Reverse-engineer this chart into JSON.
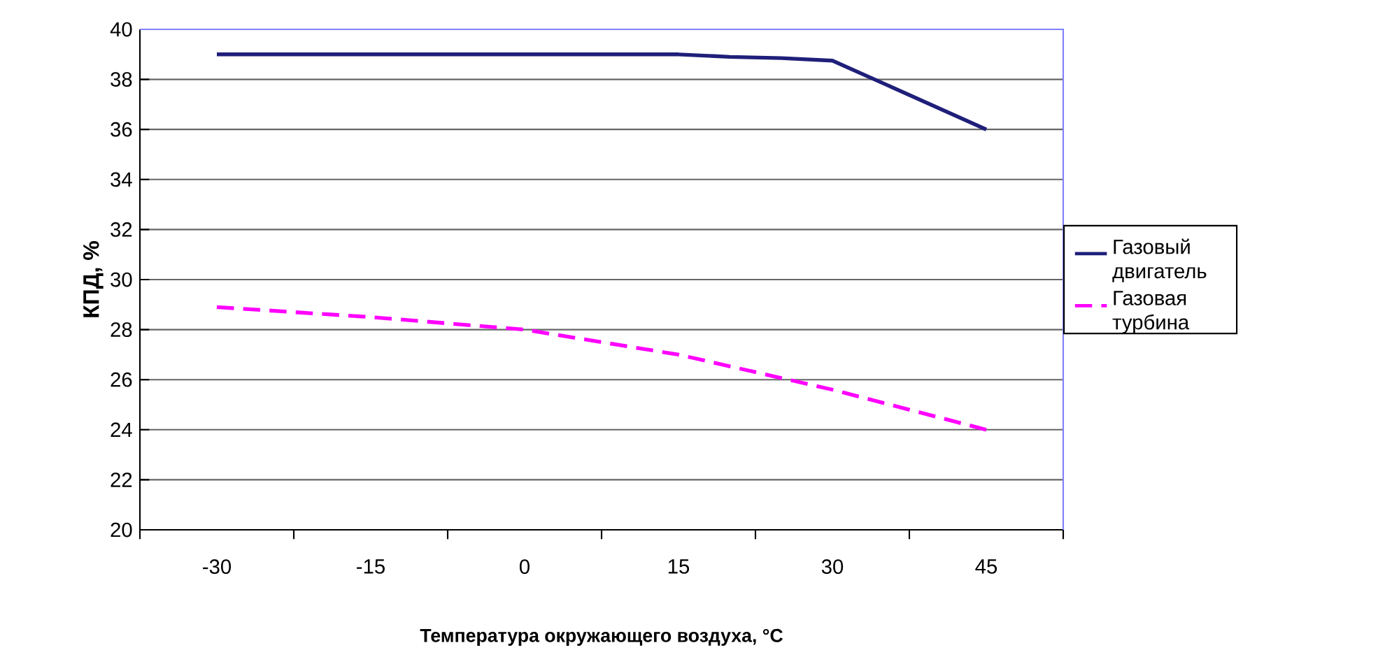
{
  "chart_data": {
    "type": "line",
    "xlabel": "Температура окружающего воздуха, °C",
    "ylabel": "КПД, %",
    "xlim": [
      -37.5,
      52.5
    ],
    "xticks": [
      {
        "value": -37.5,
        "label": null
      },
      -30,
      {
        "value": -22.5,
        "label": null
      },
      -15,
      {
        "value": -7.5,
        "label": null
      },
      0,
      {
        "value": 7.5,
        "label": null
      },
      15,
      {
        "value": 22.5,
        "label": null
      },
      30,
      {
        "value": 37.5,
        "label": null
      },
      45,
      {
        "value": 52.5,
        "label": null
      }
    ],
    "ylim": [
      20,
      40
    ],
    "yticks": [
      20,
      22,
      24,
      26,
      28,
      30,
      32,
      34,
      36,
      38,
      40
    ],
    "grid": "y",
    "legend": "right",
    "series": [
      {
        "name": "Газовый двигатель",
        "color": "#1f1f7a",
        "line_style": "solid",
        "x": [
          -30,
          15,
          20,
          25,
          30,
          45
        ],
        "values": [
          39,
          39,
          38.9,
          38.85,
          38.75,
          36
        ]
      },
      {
        "name": "Газовая турбина",
        "color": "#ff00ff",
        "line_style": "dashed",
        "x": [
          -30,
          -15,
          0,
          15,
          22.5,
          30,
          45
        ],
        "values": [
          28.9,
          28.5,
          28,
          27,
          26.3,
          25.6,
          24
        ]
      }
    ]
  }
}
